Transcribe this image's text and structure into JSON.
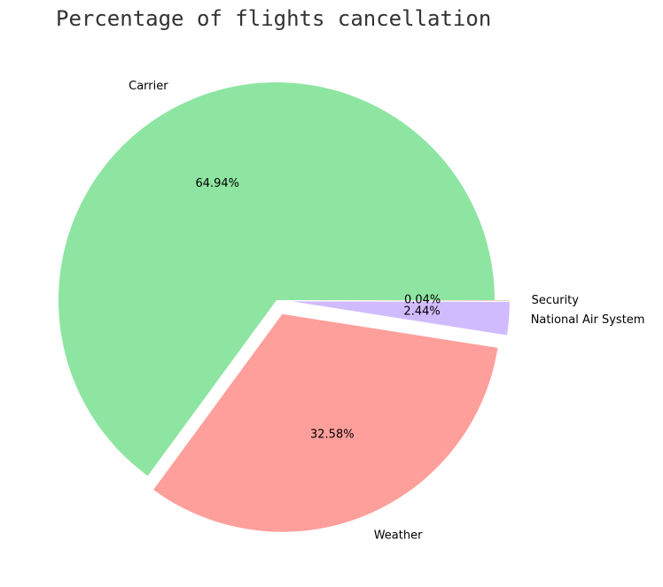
{
  "chart_data": {
    "type": "pie",
    "title": "Percentage of flights cancellation",
    "slices": [
      {
        "label": "Carrier",
        "value": 64.94,
        "pct_label": "64.94%",
        "color": "#8ee5a1",
        "explode": false
      },
      {
        "label": "Weather",
        "value": 32.58,
        "pct_label": "32.58%",
        "color": "#ff9f9b",
        "explode": true
      },
      {
        "label": "National Air System",
        "value": 2.44,
        "pct_label": "2.44%",
        "color": "#d0bbff",
        "explode": true
      },
      {
        "label": "Security",
        "value": 0.04,
        "pct_label": "0.04%",
        "color": "#debb9b",
        "explode": true
      }
    ],
    "start_angle_deg": 0,
    "direction": "counterclockwise"
  }
}
